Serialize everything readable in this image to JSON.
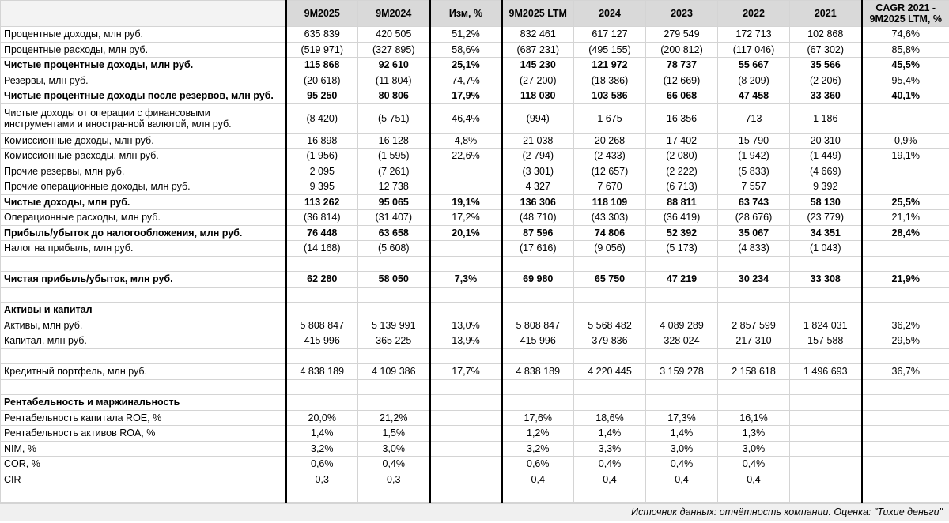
{
  "table": {
    "columns": [
      "9M2025",
      "9M2024",
      "Изм, %",
      "9M2025 LTM",
      "2024",
      "2023",
      "2022",
      "2021",
      "CAGR 2021 - 9M2025 LTM, %"
    ],
    "rows": [
      {
        "cells": [
          "Процентные доходы, млн руб.",
          "635 839",
          "420 505",
          "51,2%",
          "832 461",
          "617 127",
          "279 549",
          "172 713",
          "102 868",
          "74,6%"
        ]
      },
      {
        "cells": [
          "Процентные расходы, млн руб.",
          "(519 971)",
          "(327 895)",
          "58,6%",
          "(687 231)",
          "(495 155)",
          "(200 812)",
          "(117 046)",
          "(67 302)",
          "85,8%"
        ]
      },
      {
        "bold": true,
        "cells": [
          "Чистые процентные доходы, млн руб.",
          "115 868",
          "92 610",
          "25,1%",
          "145 230",
          "121 972",
          "78 737",
          "55 667",
          "35 566",
          "45,5%"
        ]
      },
      {
        "cells": [
          "Резервы, млн руб.",
          "(20 618)",
          "(11 804)",
          "74,7%",
          "(27 200)",
          "(18 386)",
          "(12 669)",
          "(8 209)",
          "(2 206)",
          "95,4%"
        ]
      },
      {
        "bold": true,
        "cells": [
          "Чистые процентные доходы после резервов, млн руб.",
          "95 250",
          "80 806",
          "17,9%",
          "118 030",
          "103 586",
          "66 068",
          "47 458",
          "33 360",
          "40,1%"
        ]
      },
      {
        "cells": [
          "Чистые доходы от операции с финансовыми инструментами и иностранной валютой, млн руб.",
          "(8 420)",
          "(5 751)",
          "46,4%",
          "(994)",
          "1 675",
          "16 356",
          "713",
          "1 186",
          null
        ]
      },
      {
        "cells": [
          "Комиссионные доходы, млн руб.",
          "16 898",
          "16 128",
          "4,8%",
          "21 038",
          "20 268",
          "17 402",
          "15 790",
          "20 310",
          "0,9%"
        ]
      },
      {
        "cells": [
          "Комиссионные расходы, млн руб.",
          "(1 956)",
          "(1 595)",
          "22,6%",
          "(2 794)",
          "(2 433)",
          "(2 080)",
          "(1 942)",
          "(1 449)",
          "19,1%"
        ]
      },
      {
        "cells": [
          "Прочие резервы, млн руб.",
          "2 095",
          "(7 261)",
          null,
          "(3 301)",
          "(12 657)",
          "(2 222)",
          "(5 833)",
          "(4 669)",
          null
        ]
      },
      {
        "cells": [
          "Прочие операционные доходы, млн руб.",
          "9 395",
          "12 738",
          null,
          "4 327",
          "7 670",
          "(6 713)",
          "7 557",
          "9 392",
          null
        ]
      },
      {
        "bold": true,
        "cells": [
          "Чистые доходы, млн руб.",
          "113 262",
          "95 065",
          "19,1%",
          "136 306",
          "118 109",
          "88 811",
          "63 743",
          "58 130",
          "25,5%"
        ]
      },
      {
        "cells": [
          "Операционные расходы, млн руб.",
          "(36 814)",
          "(31 407)",
          "17,2%",
          "(48 710)",
          "(43 303)",
          "(36 419)",
          "(28 676)",
          "(23 779)",
          "21,1%"
        ]
      },
      {
        "bold": true,
        "cells": [
          "Прибыль/убыток до налогообложения, млн руб.",
          "76 448",
          "63 658",
          "20,1%",
          "87 596",
          "74 806",
          "52 392",
          "35 067",
          "34 351",
          "28,4%"
        ]
      },
      {
        "cells": [
          "Налог на прибыль, млн руб.",
          "(14 168)",
          "(5 608)",
          null,
          "(17 616)",
          "(9 056)",
          "(5 173)",
          "(4 833)",
          "(1 043)",
          null
        ]
      },
      null,
      {
        "bold": true,
        "cells": [
          "Чистая прибыль/убыток, млн руб.",
          "62 280",
          "58 050",
          "7,3%",
          "69 980",
          "65 750",
          "47 219",
          "30 234",
          "33 308",
          "21,9%"
        ]
      },
      null,
      {
        "bold": true,
        "cells": [
          "Активы и капитал",
          null,
          null,
          null,
          null,
          null,
          null,
          null,
          null,
          null
        ]
      },
      {
        "cells": [
          "Активы, млн руб.",
          "5 808 847",
          "5 139 991",
          "13,0%",
          "5 808 847",
          "5 568 482",
          "4 089 289",
          "2 857 599",
          "1 824 031",
          "36,2%"
        ]
      },
      {
        "cells": [
          "Капитал, млн руб.",
          "415 996",
          "365 225",
          "13,9%",
          "415 996",
          "379 836",
          "328 024",
          "217 310",
          "157 588",
          "29,5%"
        ]
      },
      null,
      {
        "cells": [
          "Кредитный портфель, млн руб.",
          "4 838 189",
          "4 109 386",
          "17,7%",
          "4 838 189",
          "4 220 445",
          "3 159 278",
          "2 158 618",
          "1 496 693",
          "36,7%"
        ]
      },
      null,
      {
        "bold": true,
        "cells": [
          "Рентабельность и маржинальность",
          null,
          null,
          null,
          null,
          null,
          null,
          null,
          null,
          null
        ]
      },
      {
        "cells": [
          "Рентабельность капитала ROE, %",
          "20,0%",
          "21,2%",
          null,
          "17,6%",
          "18,6%",
          "17,3%",
          "16,1%",
          null,
          null
        ]
      },
      {
        "cells": [
          "Рентабельность активов ROA, %",
          "1,4%",
          "1,5%",
          null,
          "1,2%",
          "1,4%",
          "1,4%",
          "1,3%",
          null,
          null
        ]
      },
      {
        "cells": [
          "NIM, %",
          "3,2%",
          "3,0%",
          null,
          "3,2%",
          "3,3%",
          "3,0%",
          "3,0%",
          null,
          null
        ]
      },
      {
        "cells": [
          "COR, %",
          "0,6%",
          "0,4%",
          null,
          "0,6%",
          "0,4%",
          "0,4%",
          "0,4%",
          null,
          null
        ]
      },
      {
        "cells": [
          "CIR",
          "0,3",
          "0,3",
          null,
          "0,4",
          "0,4",
          "0,4",
          "0,4",
          null,
          null
        ]
      },
      null
    ],
    "footer": "Источник данных: отчётность компании. Оценка: \"Тихие деньги\""
  }
}
